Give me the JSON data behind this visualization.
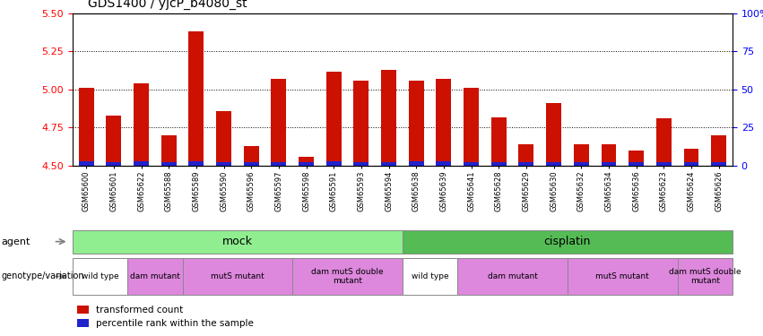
{
  "title": "GDS1400 / yjcP_b4080_st",
  "samples": [
    "GSM65600",
    "GSM65601",
    "GSM65622",
    "GSM65588",
    "GSM65589",
    "GSM65590",
    "GSM65596",
    "GSM65597",
    "GSM65598",
    "GSM65591",
    "GSM65593",
    "GSM65594",
    "GSM65638",
    "GSM65639",
    "GSM65641",
    "GSM65628",
    "GSM65629",
    "GSM65630",
    "GSM65632",
    "GSM65634",
    "GSM65636",
    "GSM65623",
    "GSM65624",
    "GSM65626"
  ],
  "red_values": [
    5.01,
    4.83,
    5.04,
    4.7,
    5.38,
    4.86,
    4.63,
    5.07,
    4.56,
    5.12,
    5.06,
    5.13,
    5.06,
    5.07,
    5.01,
    4.82,
    4.64,
    4.91,
    4.64,
    4.64,
    4.6,
    4.81,
    4.61,
    4.7
  ],
  "blue_values": [
    0.03,
    0.02,
    0.03,
    0.02,
    0.03,
    0.025,
    0.02,
    0.025,
    0.02,
    0.03,
    0.025,
    0.025,
    0.03,
    0.03,
    0.025,
    0.025,
    0.02,
    0.025,
    0.02,
    0.02,
    0.02,
    0.025,
    0.02,
    0.02
  ],
  "ymin": 4.5,
  "ymax": 5.5,
  "yticks": [
    4.5,
    4.75,
    5.0,
    5.25,
    5.5
  ],
  "gridlines": [
    4.75,
    5.0,
    5.25
  ],
  "right_yticks": [
    0,
    25,
    50,
    75,
    100
  ],
  "agent_groups": [
    {
      "label": "mock",
      "start": 0,
      "end": 11,
      "color": "#90EE90"
    },
    {
      "label": "cisplatin",
      "start": 12,
      "end": 23,
      "color": "#55BB55"
    }
  ],
  "geno_groups": [
    {
      "label": "wild type",
      "start": 0,
      "end": 1,
      "color": "#FFFFFF"
    },
    {
      "label": "dam mutant",
      "start": 2,
      "end": 3,
      "color": "#DD88DD"
    },
    {
      "label": "mutS mutant",
      "start": 4,
      "end": 7,
      "color": "#DD88DD"
    },
    {
      "label": "dam mutS double\nmutant",
      "start": 8,
      "end": 11,
      "color": "#DD88DD"
    },
    {
      "label": "wild type",
      "start": 12,
      "end": 13,
      "color": "#FFFFFF"
    },
    {
      "label": "dam mutant",
      "start": 14,
      "end": 17,
      "color": "#DD88DD"
    },
    {
      "label": "mutS mutant",
      "start": 18,
      "end": 21,
      "color": "#DD88DD"
    },
    {
      "label": "dam mutS double\nmutant",
      "start": 22,
      "end": 23,
      "color": "#DD88DD"
    }
  ],
  "bar_color": "#CC1100",
  "blue_color": "#2222CC",
  "bar_width": 0.55
}
